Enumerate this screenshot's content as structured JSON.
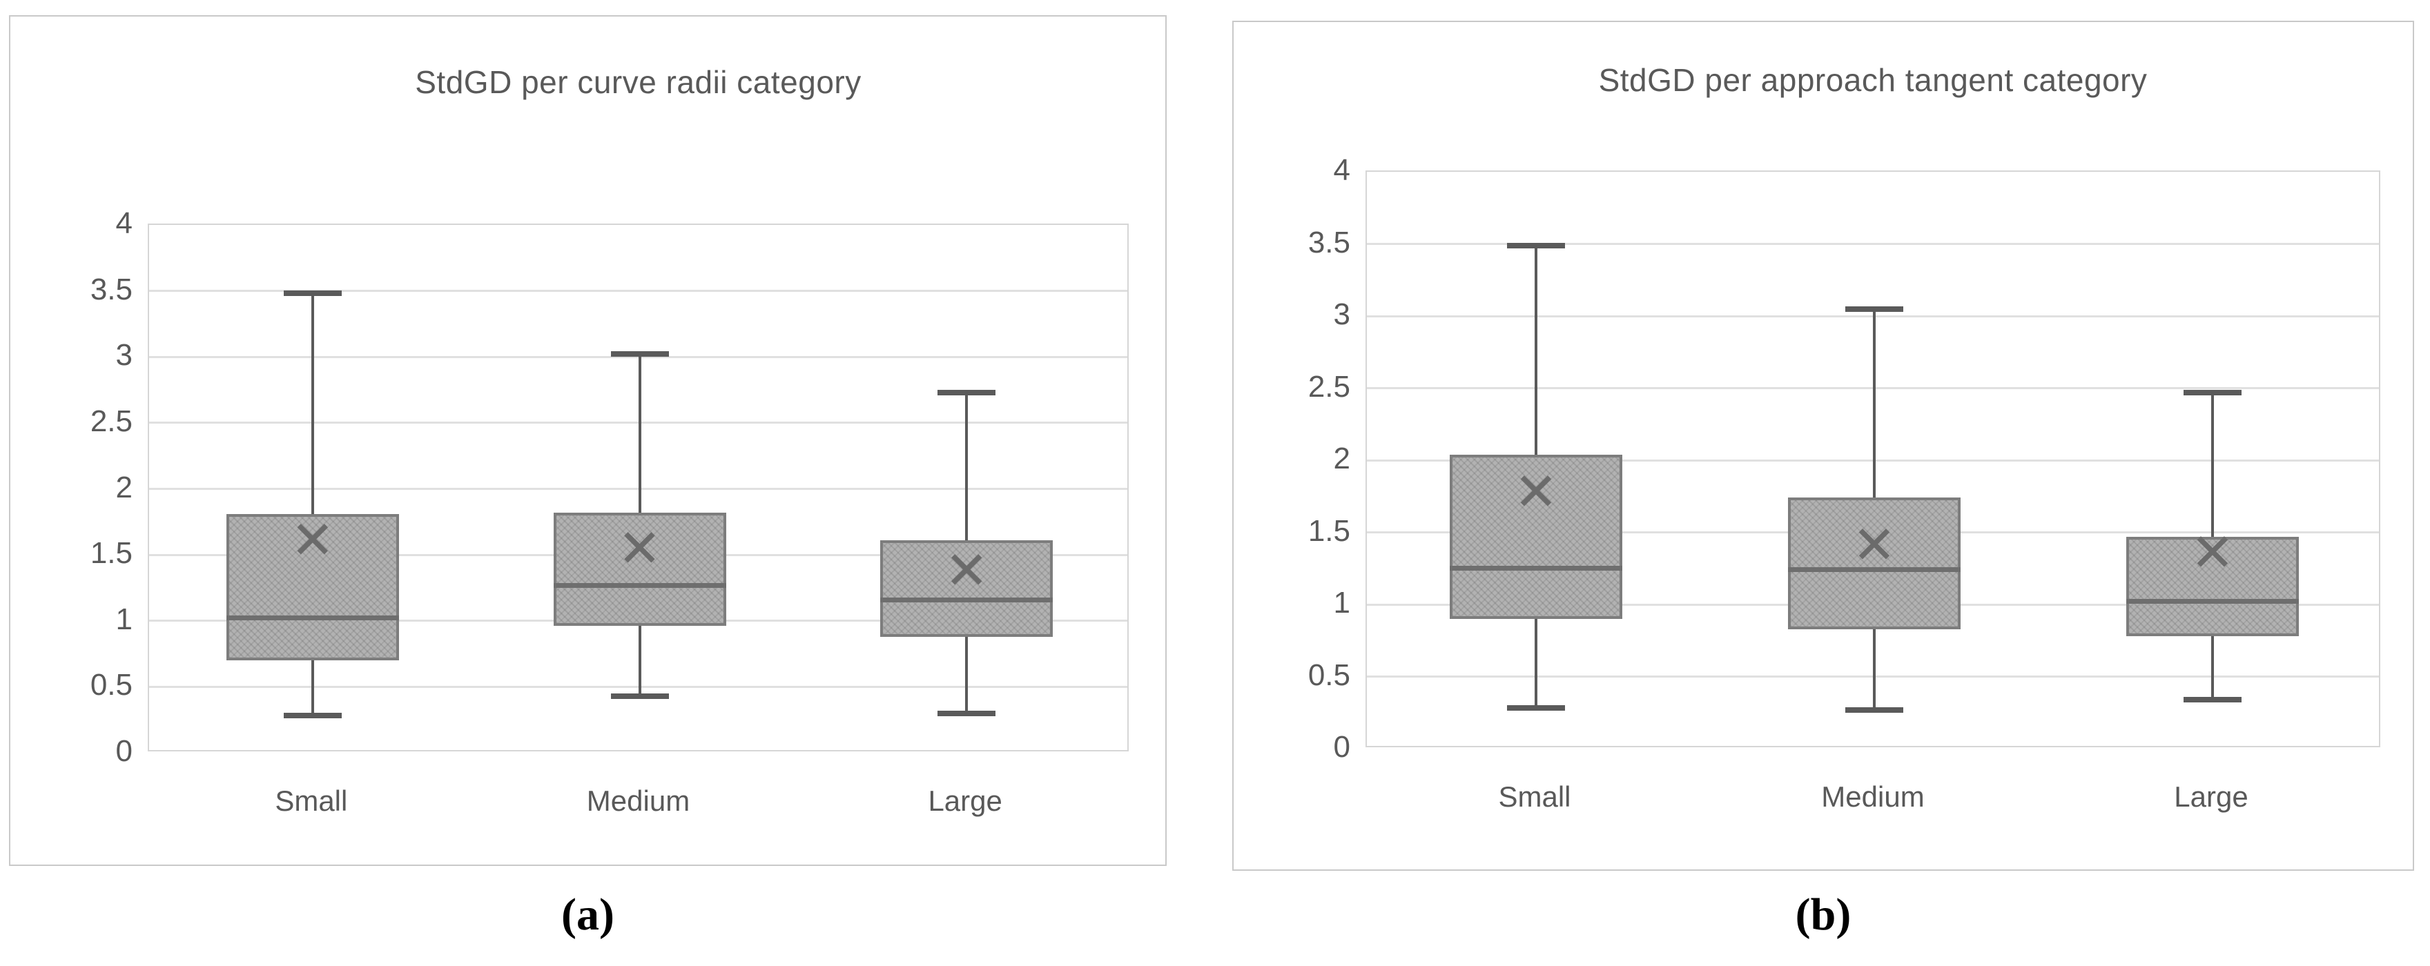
{
  "figure": {
    "captions": [
      "(a)",
      "(b)"
    ]
  },
  "chart_data": [
    {
      "type": "boxplot",
      "title": "StdGD per curve radii category",
      "categories": [
        "Small",
        "Medium",
        "Large"
      ],
      "ylim": [
        0,
        4
      ],
      "ytick_step": 0.5,
      "yticks": [
        "4",
        "3.5",
        "3",
        "2.5",
        "2",
        "1.5",
        "1",
        "0.5",
        "0"
      ],
      "grid": true,
      "legend": "none",
      "boxes": [
        {
          "category": "Small",
          "whisker_low": 0.28,
          "q1": 0.7,
          "median": 1.02,
          "q3": 1.81,
          "whisker_high": 3.48,
          "mean": 1.61
        },
        {
          "category": "Medium",
          "whisker_low": 0.43,
          "q1": 0.96,
          "median": 1.27,
          "q3": 1.82,
          "whisker_high": 3.02,
          "mean": 1.55
        },
        {
          "category": "Large",
          "whisker_low": 0.3,
          "q1": 0.88,
          "median": 1.16,
          "q3": 1.61,
          "whisker_high": 2.73,
          "mean": 1.38
        }
      ]
    },
    {
      "type": "boxplot",
      "title": "StdGD per approach tangent category",
      "categories": [
        "Small",
        "Medium",
        "Large"
      ],
      "ylim": [
        0,
        4
      ],
      "ytick_step": 0.5,
      "yticks": [
        "4",
        "3.5",
        "3",
        "2.5",
        "2",
        "1.5",
        "1",
        "0.5",
        "0"
      ],
      "grid": true,
      "legend": "none",
      "boxes": [
        {
          "category": "Small",
          "whisker_low": 0.28,
          "q1": 0.9,
          "median": 1.25,
          "q3": 2.04,
          "whisker_high": 3.49,
          "mean": 1.78
        },
        {
          "category": "Medium",
          "whisker_low": 0.27,
          "q1": 0.83,
          "median": 1.24,
          "q3": 1.74,
          "whisker_high": 3.05,
          "mean": 1.41
        },
        {
          "category": "Large",
          "whisker_low": 0.34,
          "q1": 0.78,
          "median": 1.02,
          "q3": 1.47,
          "whisker_high": 2.47,
          "mean": 1.36
        }
      ]
    }
  ],
  "colors": {
    "box_fill": "#b2b2b2",
    "box_border": "#7d7d7d",
    "median": "#6e6e6e",
    "whisker": "#5a5a5a",
    "mean_marker": "#6b6b6b",
    "gridline": "#e0e0e0",
    "plot_border": "#d6d6d6",
    "panel_border": "#c9c9c9",
    "text": "#595959",
    "caption_text": "#000000"
  }
}
